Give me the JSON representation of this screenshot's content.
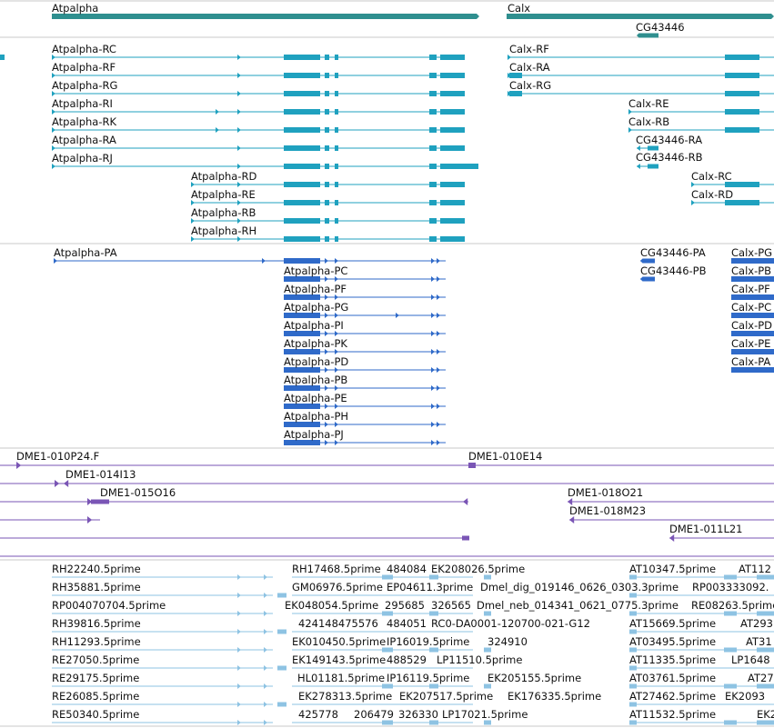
{
  "colors": {
    "gene": "#2f8f8f",
    "transcript_rna": "#1fa1bf",
    "transcript_protein": "#2f6ac9",
    "probe": "#7a55b5",
    "est": "#8ec3e3",
    "divider": "#c8c8c8"
  },
  "genes": {
    "atpalpha": "Atpalpha",
    "calx": "Calx",
    "cg43446": "CG43446"
  },
  "rna_tracks": {
    "left": [
      "Atpalpha-RC",
      "Atpalpha-RF",
      "Atpalpha-RG",
      "Atpalpha-RI",
      "Atpalpha-RK",
      "Atpalpha-RA",
      "Atpalpha-RJ"
    ],
    "left2": [
      "Atpalpha-RD",
      "Atpalpha-RE",
      "Atpalpha-RB",
      "Atpalpha-RH"
    ],
    "calx_top": [
      "Calx-RF",
      "Calx-RA",
      "Calx-RG"
    ],
    "calx_mid": [
      "Calx-RE",
      "Calx-RB"
    ],
    "cg": [
      "CG43446-RA",
      "CG43446-RB"
    ],
    "calx_low": [
      "Calx-RC",
      "Calx-RD"
    ]
  },
  "protein_tracks": {
    "pa": "Atpalpha-PA",
    "atp": [
      "Atpalpha-PC",
      "Atpalpha-PF",
      "Atpalpha-PG",
      "Atpalpha-PI",
      "Atpalpha-PK",
      "Atpalpha-PD",
      "Atpalpha-PB",
      "Atpalpha-PE",
      "Atpalpha-PH",
      "Atpalpha-PJ"
    ],
    "cg": [
      "CG43446-PA",
      "CG43446-PB"
    ],
    "calx": [
      "Calx-PG",
      "Calx-PB",
      "Calx-PF",
      "Calx-PC",
      "Calx-PD",
      "Calx-PE",
      "Calx-PA"
    ]
  },
  "probes": [
    "DME1-010P24.F",
    "DME1-014I13",
    "DME1-015O16",
    "DME1-010E14",
    "DME1-018O21",
    "DME1-018M23",
    "DME1-011L21"
  ],
  "ests": {
    "col1": [
      "RH22240.5prime",
      "RH35881.5prime",
      "RP004070704.5prime",
      "RH39816.5prime",
      "RH11293.5prime",
      "RE27050.5prime",
      "RE29175.5prime",
      "RE26085.5prime",
      "RE50340.5prime"
    ],
    "row1": [
      "RH17468.5prime",
      "484084",
      "EK208026.5prime",
      "AT10347.5prime",
      "AT112"
    ],
    "row2": [
      "GM06976.5prime",
      "EP04611.3prime",
      "Dmel_dig_019146_0626_0303.3prime",
      "RP003333092."
    ],
    "row3": [
      "EK048054.5prime",
      "295685",
      "326565",
      "Dmel_neb_014341_0621_0775.3prime",
      "RE08263.5prime"
    ],
    "row4": [
      "424148475576",
      "484051",
      "RC0-DA0001-120700-021-G12",
      "AT15669.5prime",
      "AT293"
    ],
    "row5": [
      "EK010450.5prime",
      "IP16019.5prime",
      "324910",
      "AT03495.5prime",
      "AT31"
    ],
    "row6": [
      "EK149143.5prime",
      "488529",
      "LP11510.5prime",
      "AT11335.5prime",
      "LP1648"
    ],
    "row7": [
      "HL01181.5prime",
      "IP16119.5prime",
      "EK205155.5prime",
      "AT03761.5prime",
      "AT27"
    ],
    "row8": [
      "EK278313.5prime",
      "EK207517.5prime",
      "EK176335.5prime",
      "AT27462.5prime",
      "EK2093"
    ],
    "row9": [
      "425778",
      "206479",
      "326330",
      "LP17021.5prime",
      "AT11532.5prime",
      "EK2"
    ]
  }
}
